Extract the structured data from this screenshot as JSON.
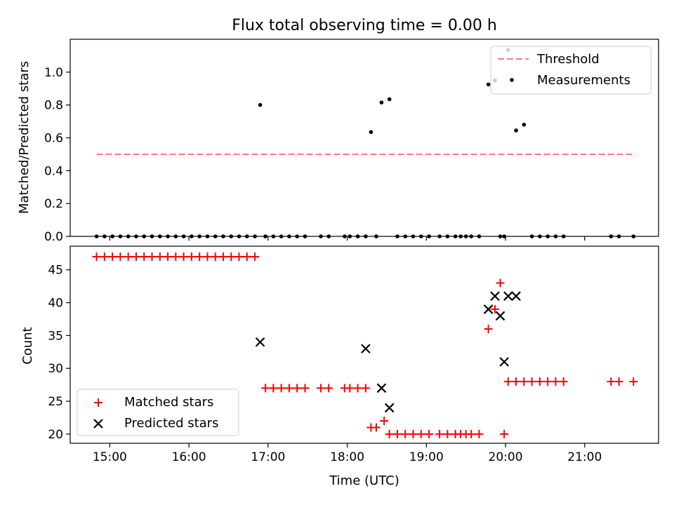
{
  "chart_data": [
    {
      "type": "scatter",
      "title": "Flux total observing time = 0.00 h",
      "xlabel": "",
      "ylabel": "Matched/Predicted stars",
      "xlim": [
        "14:30",
        "21:56"
      ],
      "ylim": [
        0,
        1.2
      ],
      "yticks": [
        "0.0",
        "0.2",
        "0.4",
        "0.6",
        "0.8",
        "1.0"
      ],
      "ytick_values": [
        0,
        0.2,
        0.4,
        0.6,
        0.8,
        1.0
      ],
      "xticks": [
        "15:00",
        "16:00",
        "17:00",
        "18:00",
        "19:00",
        "20:00",
        "21:00"
      ],
      "xtick_labels_shown": false,
      "grid": false,
      "legend": "upper-right",
      "threshold": {
        "name": "Threshold",
        "y": 0.5,
        "x_start": "14:50",
        "x_end": "21:37",
        "color": "#ff7f7f",
        "style": "dashed"
      },
      "series": [
        {
          "name": "Measurements",
          "color": "#000000",
          "marker": "dot",
          "x": [
            "14:50",
            "14:56",
            "15:02",
            "15:08",
            "15:14",
            "15:20",
            "15:26",
            "15:32",
            "15:38",
            "15:44",
            "15:50",
            "15:56",
            "16:02",
            "16:08",
            "16:14",
            "16:20",
            "16:26",
            "16:32",
            "16:38",
            "16:44",
            "16:50",
            "16:54",
            "16:58",
            "17:04",
            "17:10",
            "17:16",
            "17:22",
            "17:28",
            "17:40",
            "17:46",
            "17:58",
            "18:02",
            "18:08",
            "18:14",
            "18:18",
            "18:22",
            "18:26",
            "18:32",
            "18:38",
            "18:44",
            "18:50",
            "18:56",
            "19:02",
            "19:10",
            "19:16",
            "19:22",
            "19:26",
            "19:30",
            "19:34",
            "19:40",
            "19:47",
            "19:52",
            "19:56",
            "19:59",
            "20:02",
            "20:08",
            "20:14",
            "20:20",
            "20:26",
            "20:32",
            "20:38",
            "20:44",
            "21:20",
            "21:26",
            "21:37"
          ],
          "values": [
            0,
            0,
            0,
            0,
            0,
            0,
            0,
            0,
            0,
            0,
            0,
            0,
            0,
            0,
            0,
            0,
            0,
            0,
            0,
            0,
            0,
            0.8,
            0,
            0,
            0,
            0,
            0,
            0,
            0,
            0,
            0,
            0,
            0,
            0,
            0.635,
            0,
            0.815,
            0.835,
            0,
            0,
            0,
            0,
            0,
            0,
            0,
            0,
            0,
            0,
            0,
            0,
            0.925,
            0.95,
            0,
            0,
            1.135,
            0.645,
            0.68,
            0,
            0,
            0,
            0,
            0,
            0,
            0,
            0
          ]
        }
      ]
    },
    {
      "type": "scatter",
      "title": "",
      "xlabel": "Time (UTC)",
      "ylabel": "Count",
      "xlim": [
        "14:30",
        "21:56"
      ],
      "ylim": [
        18.6,
        48.6
      ],
      "yticks": [
        "20",
        "25",
        "30",
        "35",
        "40",
        "45"
      ],
      "ytick_values": [
        20,
        25,
        30,
        35,
        40,
        45
      ],
      "xticks": [
        "15:00",
        "16:00",
        "17:00",
        "18:00",
        "19:00",
        "20:00",
        "21:00"
      ],
      "grid": false,
      "legend": "lower-left",
      "series": [
        {
          "name": "Matched stars",
          "color": "#ff0000",
          "marker": "plus",
          "x": [
            "14:50",
            "14:56",
            "15:02",
            "15:08",
            "15:14",
            "15:20",
            "15:26",
            "15:32",
            "15:38",
            "15:44",
            "15:50",
            "15:56",
            "16:02",
            "16:08",
            "16:14",
            "16:20",
            "16:26",
            "16:32",
            "16:38",
            "16:44",
            "16:50",
            "16:58",
            "17:04",
            "17:10",
            "17:16",
            "17:22",
            "17:28",
            "17:40",
            "17:46",
            "17:58",
            "18:02",
            "18:08",
            "18:14",
            "18:18",
            "18:22",
            "18:28",
            "18:32",
            "18:38",
            "18:44",
            "18:50",
            "18:56",
            "19:02",
            "19:10",
            "19:16",
            "19:22",
            "19:26",
            "19:30",
            "19:34",
            "19:40",
            "19:47",
            "19:52",
            "19:56",
            "19:59",
            "20:02",
            "20:08",
            "20:14",
            "20:20",
            "20:26",
            "20:32",
            "20:38",
            "20:44",
            "21:20",
            "21:26",
            "21:37"
          ],
          "values": [
            47,
            47,
            47,
            47,
            47,
            47,
            47,
            47,
            47,
            47,
            47,
            47,
            47,
            47,
            47,
            47,
            47,
            47,
            47,
            47,
            47,
            27,
            27,
            27,
            27,
            27,
            27,
            27,
            27,
            27,
            27,
            27,
            27,
            21,
            21,
            22,
            20,
            20,
            20,
            20,
            20,
            20,
            20,
            20,
            20,
            20,
            20,
            20,
            20,
            36,
            39,
            43,
            20,
            28,
            28,
            28,
            28,
            28,
            28,
            28,
            28,
            28,
            28,
            28
          ]
        },
        {
          "name": "Predicted stars",
          "color": "#000000",
          "marker": "x",
          "x": [
            "16:54",
            "18:14",
            "18:26",
            "18:32",
            "19:47",
            "19:52",
            "19:56",
            "19:59",
            "20:02",
            "20:08"
          ],
          "values": [
            34,
            33,
            27,
            24,
            39,
            41,
            38,
            31,
            41,
            41
          ]
        }
      ]
    }
  ]
}
